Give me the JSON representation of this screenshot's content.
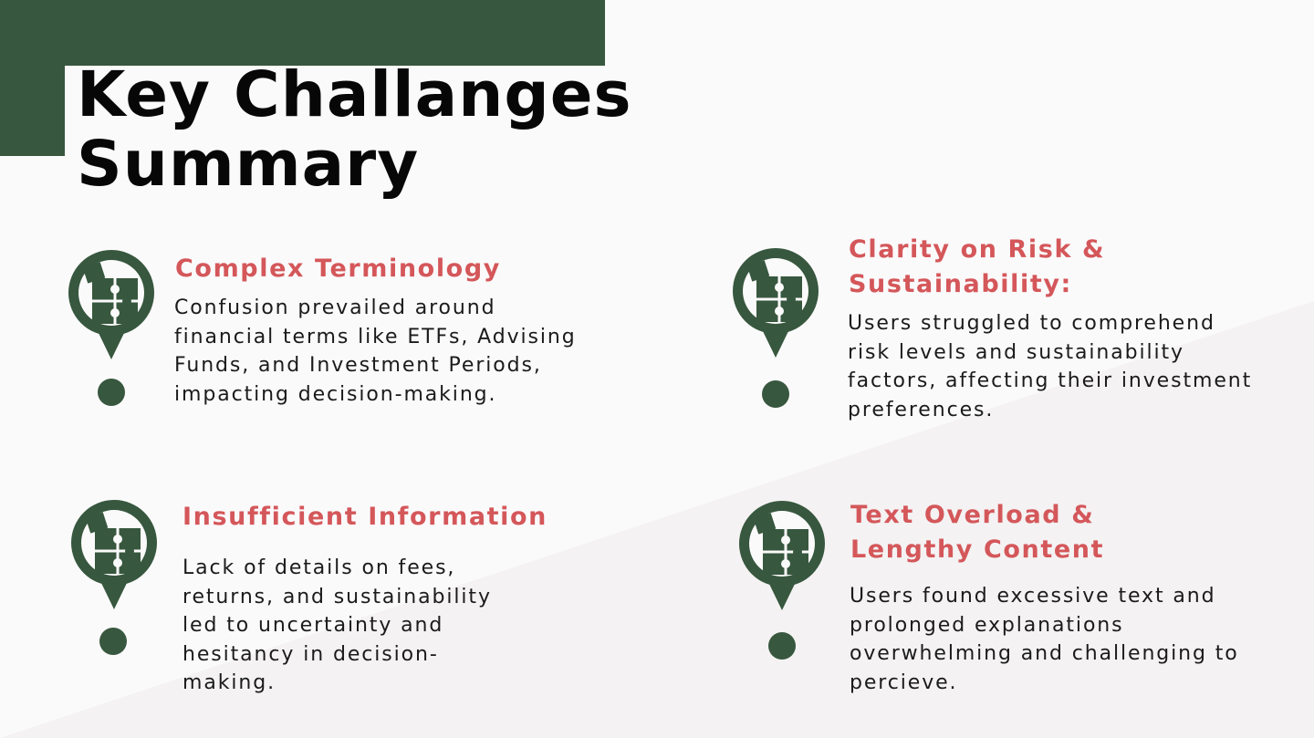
{
  "title": {
    "line1": "Key Challanges",
    "line2": "Summary"
  },
  "colors": {
    "brand_green": "#37573e",
    "heading_red": "#d4575a",
    "text": "#1b1b1b",
    "background": "#fbfafb"
  },
  "icons": {
    "pin": "map-pin-icon",
    "puzzle": "puzzle-icon",
    "dot": "dot-icon"
  },
  "cards": [
    {
      "heading": "Complex Terminology",
      "body": [
        "Confusion prevailed around",
        "financial terms like ETFs, Advising",
        "Funds, and Investment Periods,",
        "impacting decision-making."
      ]
    },
    {
      "heading_lines": [
        "Clarity on Risk &",
        "Sustainability:"
      ],
      "body": [
        "Users struggled to comprehend",
        "risk levels and sustainability",
        "factors, affecting their investment",
        "preferences."
      ]
    },
    {
      "heading": "Insufficient Information",
      "body": [
        "Lack of details on fees,",
        "returns, and sustainability",
        "led to uncertainty and",
        "hesitancy in decision-",
        "making."
      ]
    },
    {
      "heading_lines": [
        "Text Overload &",
        "Lengthy Content"
      ],
      "body": [
        "Users found excessive text and",
        "prolonged explanations",
        "overwhelming and challenging to",
        "percieve."
      ]
    }
  ]
}
